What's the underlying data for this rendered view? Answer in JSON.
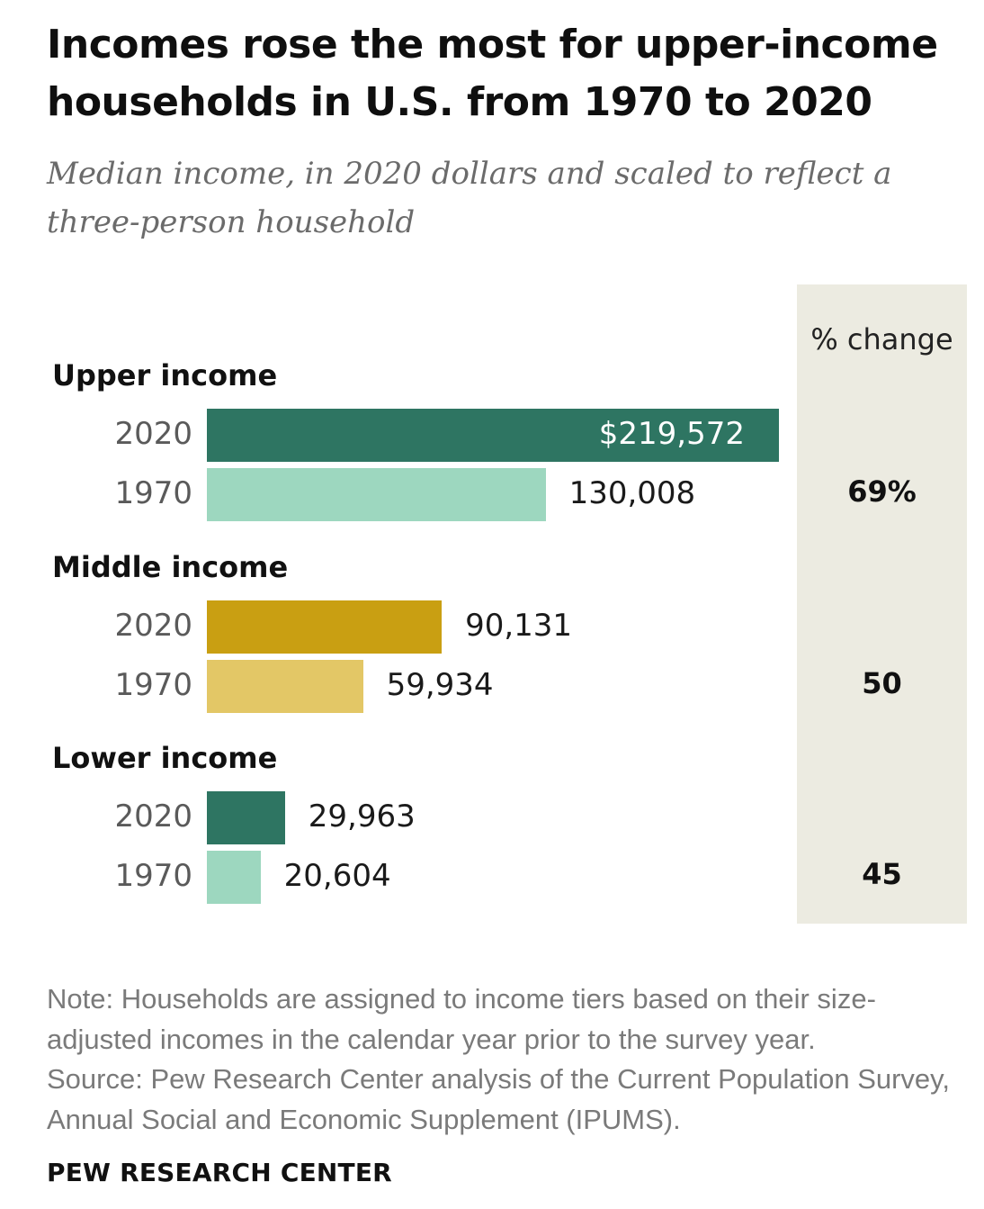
{
  "title": "Incomes rose the most for upper-income households in U.S. from 1970 to 2020",
  "subtitle": "Median income, in 2020 dollars and scaled to reflect a three-person household",
  "pct_change_header": "% change",
  "note": "Note: Households are assigned to income tiers based on their size-adjusted incomes in the calendar year prior to the survey year.",
  "source": "Source: Pew Research Center analysis of the Current Population Survey, Annual Social and Economic Supplement (IPUMS).",
  "brand": "PEW RESEARCH CENTER",
  "chart_data": {
    "type": "bar",
    "orientation": "horizontal",
    "title": "Incomes rose the most for upper-income households in U.S. from 1970 to 2020",
    "subtitle": "Median income, in 2020 dollars and scaled to reflect a three-person household",
    "groups": [
      {
        "name": "Upper income",
        "pct_change": "69%",
        "bars": [
          {
            "year": "2020",
            "value": 219572,
            "label": "$219,572",
            "color": "#2e7562"
          },
          {
            "year": "1970",
            "value": 130008,
            "label": "130,008",
            "color": "#9dd7bf"
          }
        ]
      },
      {
        "name": "Middle income",
        "pct_change": "50",
        "bars": [
          {
            "year": "2020",
            "value": 90131,
            "label": "90,131",
            "color": "#c99f12"
          },
          {
            "year": "1970",
            "value": 59934,
            "label": "59,934",
            "color": "#e3c766"
          }
        ]
      },
      {
        "name": "Lower income",
        "pct_change": "45",
        "bars": [
          {
            "year": "2020",
            "value": 29963,
            "label": "29,963",
            "color": "#2e7562"
          },
          {
            "year": "1970",
            "value": 20604,
            "label": "20,604",
            "color": "#9dd7bf"
          }
        ]
      }
    ],
    "value_max": 219572,
    "legend": "none",
    "grid": false
  }
}
